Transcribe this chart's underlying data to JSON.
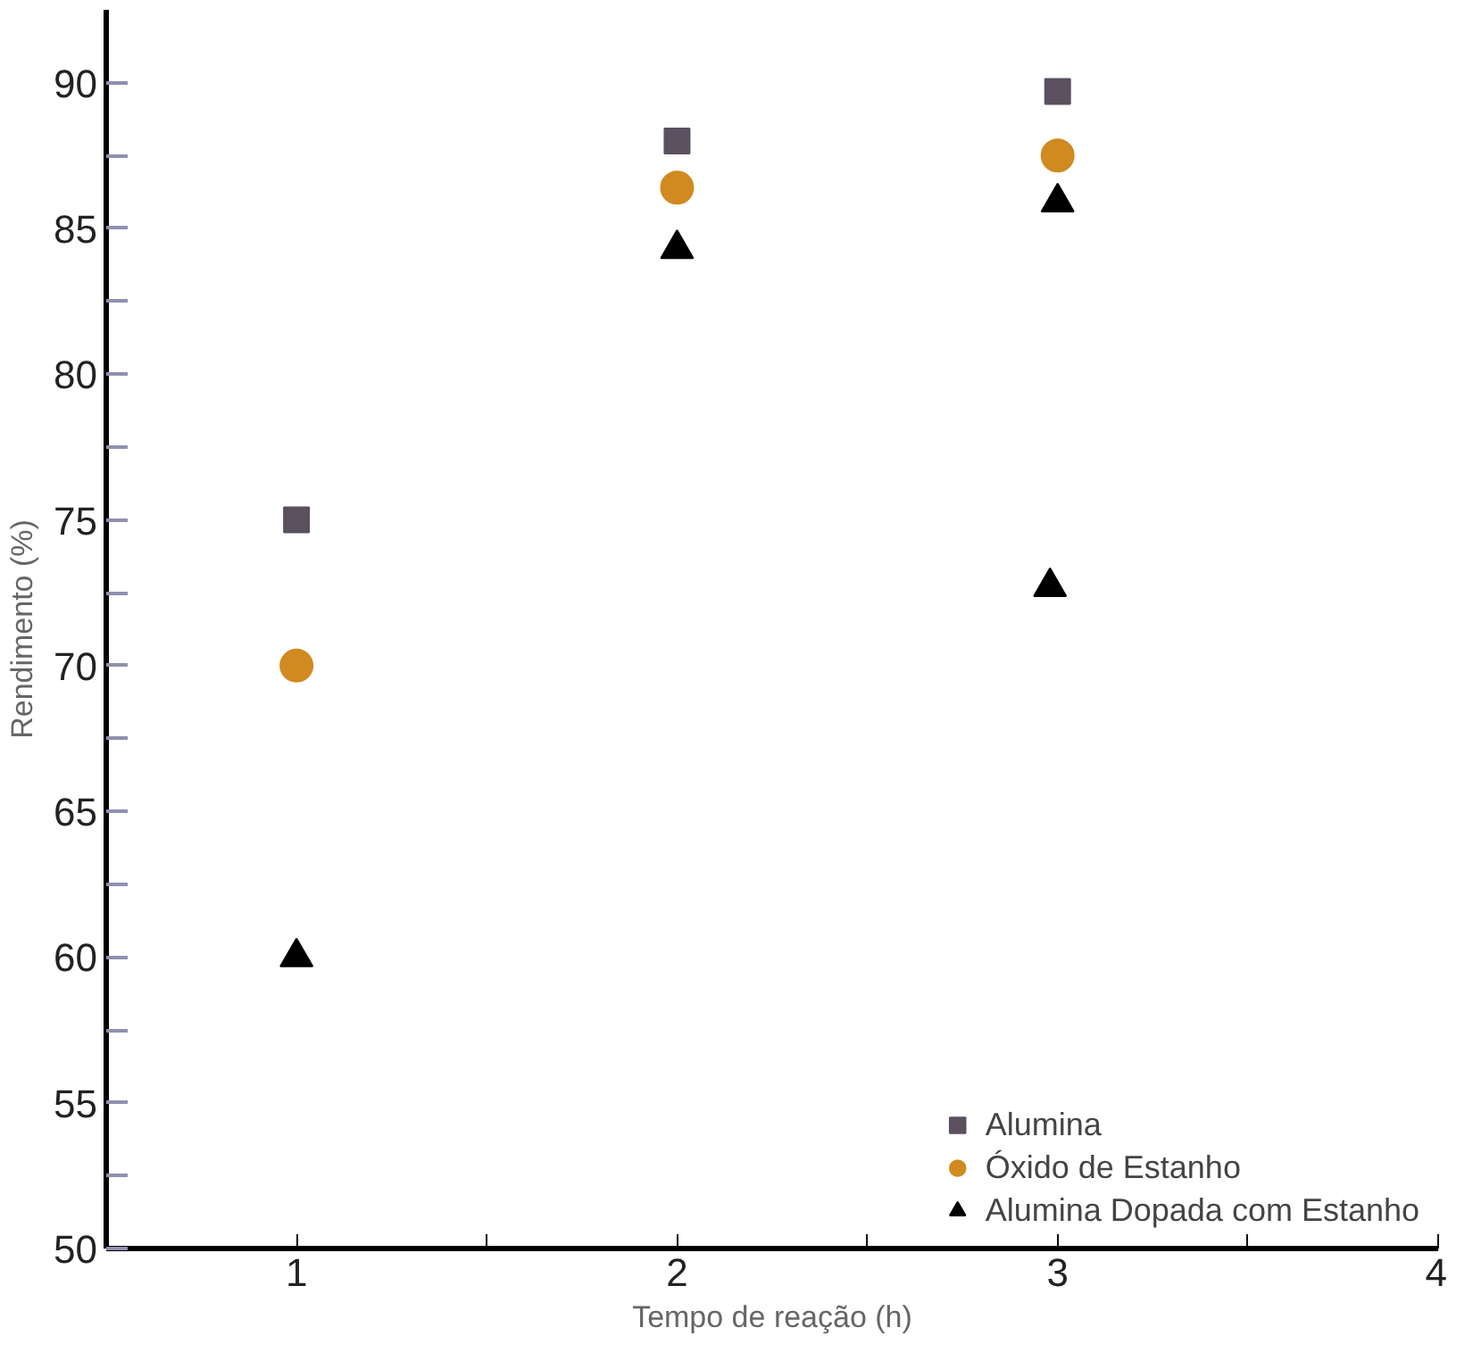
{
  "chart_data": {
    "type": "scatter",
    "xlabel": "Tempo de reação (h)",
    "ylabel": "Rendimento (%)",
    "xlim": [
      0.5,
      4
    ],
    "ylim": [
      50,
      92.5
    ],
    "xticks": [
      {
        "value": 0.5,
        "label": null
      },
      1,
      {
        "value": 1.5,
        "label": null
      },
      2,
      {
        "value": 2.5,
        "label": null
      },
      3,
      {
        "value": 3.5,
        "label": null
      },
      4
    ],
    "yticks": [
      50,
      {
        "value": 52.5,
        "label": null
      },
      55,
      {
        "value": 57.5,
        "label": null
      },
      60,
      {
        "value": 62.5,
        "label": null
      },
      65,
      {
        "value": 67.5,
        "label": null
      },
      70,
      {
        "value": 72.5,
        "label": null
      },
      75,
      {
        "value": 77.5,
        "label": null
      },
      80,
      {
        "value": 82.5,
        "label": null
      },
      85,
      {
        "value": 87.5,
        "label": null
      },
      90
    ],
    "grid": false,
    "legend": "bottom right",
    "series": [
      {
        "name": "Alumina",
        "color": "#5a5060",
        "marker": "square",
        "x": [
          1,
          2,
          3
        ],
        "values": [
          75,
          88,
          89.7
        ]
      },
      {
        "name": "Óxido de Estanho",
        "color": "#d08a20",
        "marker": "circle",
        "x": [
          1,
          2,
          3
        ],
        "values": [
          70,
          86.4,
          87.5
        ]
      },
      {
        "name": "Alumina Dopada com Estanho",
        "color": "#000000",
        "marker": "triangle",
        "x": [
          1,
          2,
          3,
          2.98
        ],
        "values": [
          60,
          84.3,
          85.9,
          72.7
        ]
      }
    ]
  }
}
